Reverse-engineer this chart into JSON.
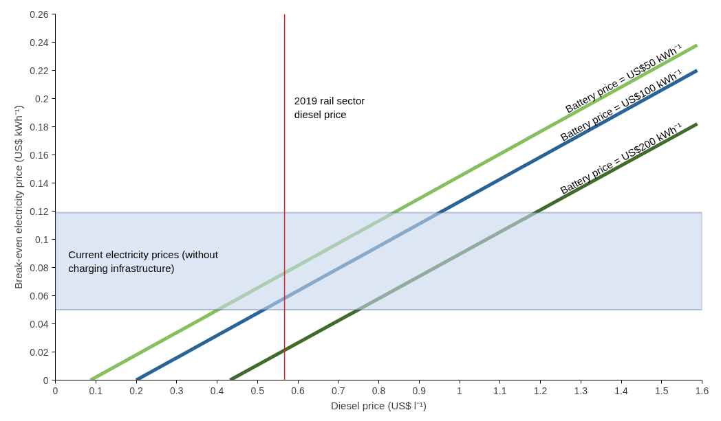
{
  "chart_data": {
    "type": "line",
    "xlabel": "Diesel price (US$ l⁻¹)",
    "ylabel": "Break-even electricity price (US$ kWh⁻¹)",
    "series": [
      {
        "name": "Battery price = US$50 kWh⁻¹",
        "color": "#86bf5e",
        "x": [
          0.087,
          1.588
        ],
        "values": [
          0,
          0.238
        ]
      },
      {
        "name": "Battery price = US$100 kWh⁻¹",
        "color": "#2a6496",
        "x": [
          0.2,
          1.588
        ],
        "values": [
          0,
          0.22
        ]
      },
      {
        "name": "Battery price = US$200 kWh⁻¹",
        "color": "#3f6b2b",
        "x": [
          0.432,
          1.588
        ],
        "values": [
          0,
          0.182
        ]
      }
    ],
    "xlim": [
      0,
      1.6
    ],
    "xticks": [
      0,
      0.1,
      0.2,
      0.3,
      0.4,
      0.5,
      0.6,
      0.7,
      0.8,
      0.9,
      1.0,
      1.1,
      1.2,
      1.3,
      1.4,
      1.5,
      1.6
    ],
    "ylim": [
      0,
      0.26
    ],
    "yticks": [
      0,
      0.02,
      0.04,
      0.06,
      0.08,
      0.1,
      0.12,
      0.14,
      0.16,
      0.18,
      0.2,
      0.22,
      0.24,
      0.26
    ],
    "ref_lines": [
      {
        "axis": "x",
        "value": 0.567,
        "label": "2019 rail sector\ndiesel price",
        "color": "#e0202a"
      }
    ],
    "bands": [
      {
        "axis": "y",
        "from": 0.05,
        "to": 0.119,
        "label": "Current electricity prices (without\ncharging infrastructure)",
        "color": "#c7d7ec"
      }
    ],
    "grid": false,
    "line_style": "solid",
    "marker": "none"
  }
}
